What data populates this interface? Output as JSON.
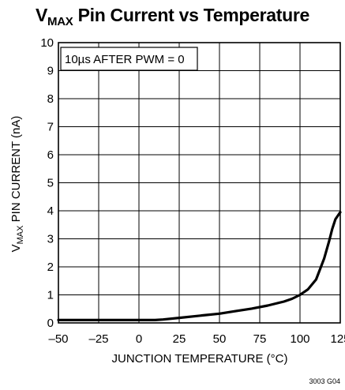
{
  "chart_data": {
    "type": "line",
    "title": {
      "main": "V",
      "sub": "MAX",
      "rest": " Pin Current vs Temperature"
    },
    "xlabel": "JUNCTION TEMPERATURE (°C)",
    "ylabel": {
      "main": "V",
      "sub": "MAX",
      "rest": " PIN CURRENT (nA)"
    },
    "xlim": [
      -50,
      125
    ],
    "ylim": [
      0,
      10
    ],
    "x_ticks": [
      "–50",
      "–25",
      "0",
      "25",
      "50",
      "75",
      "100",
      "125"
    ],
    "y_ticks": [
      "0",
      "1",
      "2",
      "3",
      "4",
      "5",
      "6",
      "7",
      "8",
      "9",
      "10"
    ],
    "grid": true,
    "annotation": "10µs AFTER PWM = 0",
    "series": [
      {
        "color": "#000000",
        "x": [
          -50,
          -25,
          0,
          10,
          15,
          25,
          40,
          50,
          60,
          70,
          80,
          90,
          95,
          100,
          105,
          110,
          115,
          118,
          120,
          122,
          125
        ],
        "y": [
          0.1,
          0.1,
          0.1,
          0.1,
          0.12,
          0.18,
          0.27,
          0.33,
          0.42,
          0.51,
          0.62,
          0.76,
          0.86,
          1.0,
          1.2,
          1.55,
          2.3,
          2.9,
          3.35,
          3.7,
          3.95
        ]
      }
    ],
    "figure_code": "3003 G04"
  }
}
